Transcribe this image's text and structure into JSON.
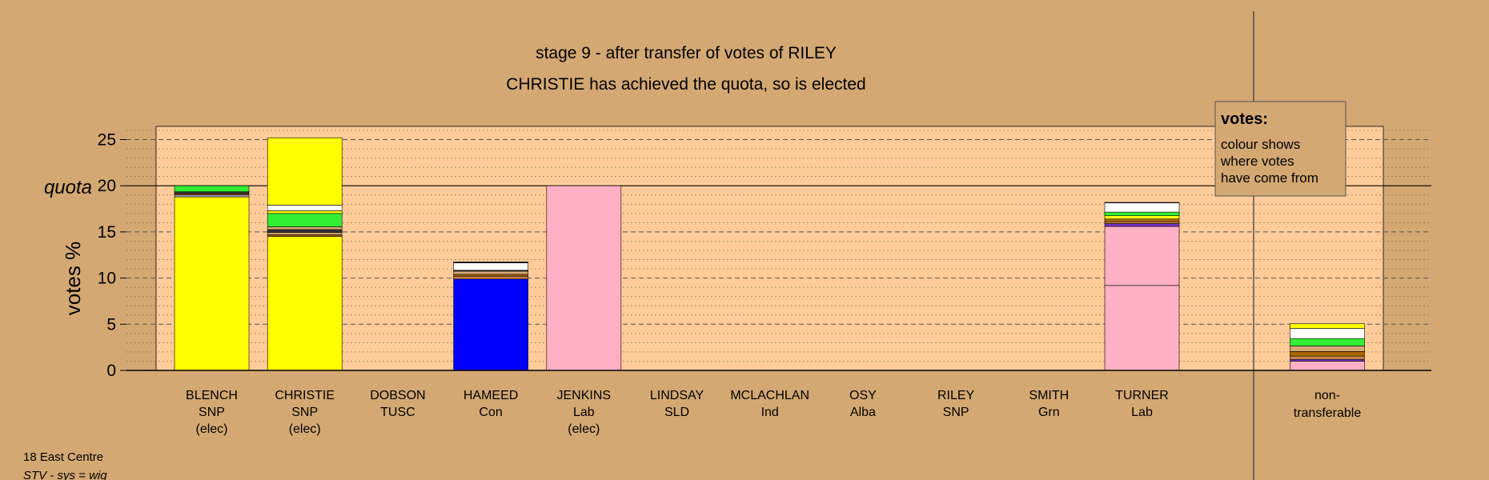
{
  "chart_data": {
    "type": "bar",
    "title": "stage 9 - after transfer of votes of RILEY",
    "subtitle": "CHRISTIE has achieved the quota, so is elected",
    "ylabel": "votes %",
    "ylim": [
      0,
      26.5
    ],
    "yticks": [
      0,
      5,
      10,
      15,
      20,
      25
    ],
    "quota": 20,
    "quota_label": "quota",
    "grid": true,
    "legend": {
      "heading": "votes:",
      "lines": [
        "colour shows",
        "where votes",
        "have come from"
      ],
      "placement": "top-right"
    },
    "categories": [
      {
        "name": "BLENCH",
        "party": "SNP",
        "note": "(elec)"
      },
      {
        "name": "CHRISTIE",
        "party": "SNP",
        "note": "(elec)"
      },
      {
        "name": "DOBSON",
        "party": "TUSC",
        "note": ""
      },
      {
        "name": "HAMEED",
        "party": "Con",
        "note": ""
      },
      {
        "name": "JENKINS",
        "party": "Lab",
        "note": "(elec)"
      },
      {
        "name": "LINDSAY",
        "party": "SLD",
        "note": ""
      },
      {
        "name": "MCLACHLAN",
        "party": "Ind",
        "note": ""
      },
      {
        "name": "OSY",
        "party": "Alba",
        "note": ""
      },
      {
        "name": "RILEY",
        "party": "SNP",
        "note": ""
      },
      {
        "name": "SMITH",
        "party": "Grn",
        "note": ""
      },
      {
        "name": "TURNER",
        "party": "Lab",
        "note": ""
      }
    ],
    "nontransferable": {
      "line1": "non-",
      "line2": "transferable"
    },
    "stacks": [
      [
        {
          "v": 18.8,
          "c": "#FFFF00"
        },
        {
          "v": 0.2,
          "c": "#B0A0E0"
        },
        {
          "v": 0.15,
          "c": "#AA6600"
        },
        {
          "v": 0.2,
          "c": "#333333"
        },
        {
          "v": 0.65,
          "c": "#33EE33"
        }
      ],
      [
        {
          "v": 14.5,
          "c": "#FFFF00"
        },
        {
          "v": 0.2,
          "c": "#AA6600"
        },
        {
          "v": 0.25,
          "c": "#D4A872"
        },
        {
          "v": 0.3,
          "c": "#333333"
        },
        {
          "v": 0.3,
          "c": "#D4A872"
        },
        {
          "v": 1.45,
          "c": "#33EE33"
        },
        {
          "v": 0.3,
          "c": "#FFFF00"
        },
        {
          "v": 0.6,
          "c": "#FFFFFF"
        },
        {
          "v": 7.3,
          "c": "#FFFF00"
        }
      ],
      [],
      [
        {
          "v": 9.9,
          "c": "#0000FF"
        },
        {
          "v": 0.3,
          "c": "#CC8844"
        },
        {
          "v": 0.2,
          "c": "#AA6600"
        },
        {
          "v": 0.35,
          "c": "#D4A872"
        },
        {
          "v": 0.1,
          "c": "#333333"
        },
        {
          "v": 0.8,
          "c": "#FFFFFF"
        },
        {
          "v": 0.1,
          "c": "#333333"
        }
      ],
      [
        {
          "v": 20.0,
          "c": "#FFB0C4"
        }
      ],
      [],
      [],
      [],
      [],
      [],
      [
        {
          "v": 9.2,
          "c": "#FFB0C4"
        },
        {
          "v": 6.4,
          "c": "#FFB0C4"
        },
        {
          "v": 0.3,
          "c": "#7733CC"
        },
        {
          "v": 0.2,
          "c": "#CC8844"
        },
        {
          "v": 0.3,
          "c": "#AA6600"
        },
        {
          "v": 0.35,
          "c": "#FFFF00"
        },
        {
          "v": 0.4,
          "c": "#33EE33"
        },
        {
          "v": 1.0,
          "c": "#FFFFFF"
        },
        {
          "v": 0.05,
          "c": "#333333"
        }
      ]
    ],
    "nontransferable_stack": [
      {
        "v": 1.0,
        "c": "#FFB0C4"
      },
      {
        "v": 0.2,
        "c": "#7733CC"
      },
      {
        "v": 0.35,
        "c": "#CC8844"
      },
      {
        "v": 0.5,
        "c": "#AA6600"
      },
      {
        "v": 0.6,
        "c": "#D4A872"
      },
      {
        "v": 0.8,
        "c": "#33EE33"
      },
      {
        "v": 1.1,
        "c": "#FFFFFF"
      },
      {
        "v": 0.5,
        "c": "#FFFF00"
      }
    ],
    "colors": {
      "background": "#D4A872",
      "plot_background": "#FFCC99",
      "axis": "#000000"
    }
  },
  "footer": {
    "line1": "18 East Centre",
    "line2": "STV - sys = wig"
  }
}
